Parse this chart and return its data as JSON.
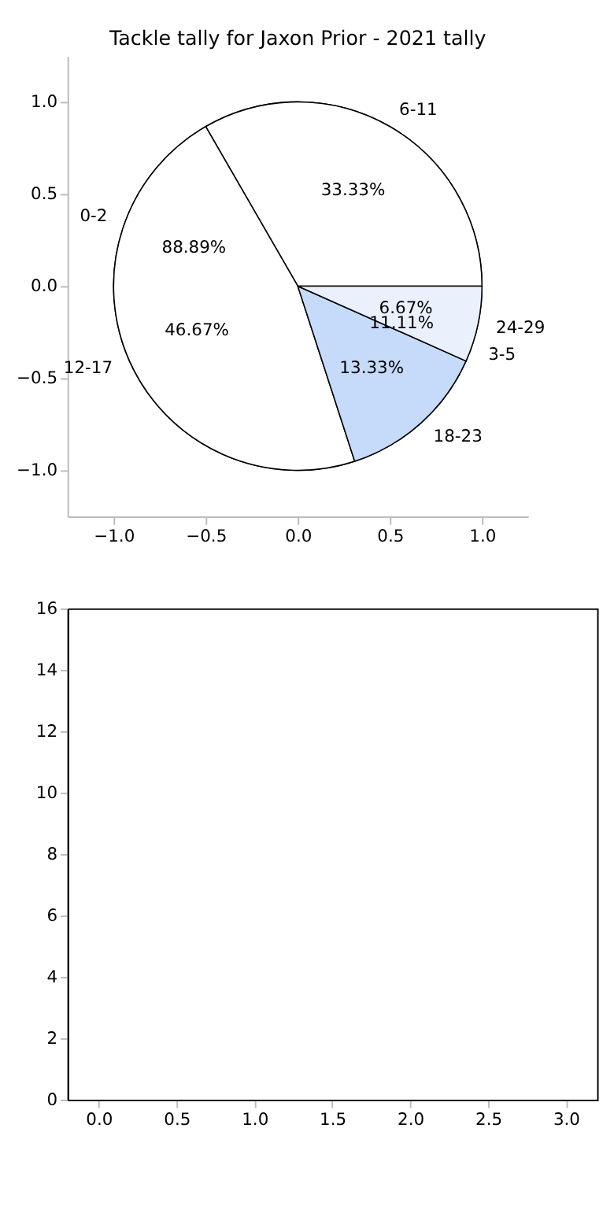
{
  "chart_data": [
    {
      "type": "scatter",
      "title": "Tackle tally for Jaxon Prior - 2021 tally",
      "xlim": [
        -1.25,
        1.25
      ],
      "ylim": [
        -1.25,
        1.25
      ],
      "xticks": [
        {
          "value": -1,
          "label": "−1.0"
        },
        {
          "value": -0.5,
          "label": "−0.5"
        },
        {
          "value": 0,
          "label": "0.0"
        },
        {
          "value": 0.5,
          "label": "0.5"
        },
        {
          "value": 1,
          "label": "1.0"
        }
      ],
      "yticks": [
        {
          "value": -1,
          "label": "−1.0"
        },
        {
          "value": -0.5,
          "label": "−0.5"
        },
        {
          "value": 0,
          "label": "0.0"
        },
        {
          "value": 0.5,
          "label": "0.5"
        },
        {
          "value": 1,
          "label": "1.0"
        }
      ]
    },
    {
      "type": "pie",
      "categories": [
        "0-2",
        "3-5"
      ],
      "values": [
        88.89,
        11.11
      ],
      "colors": [
        "#ffffff",
        "#eaf1fd"
      ],
      "value_labels": [
        "88.89%",
        "11.11%"
      ]
    },
    {
      "type": "pie",
      "categories": [
        "6-11",
        "12-17",
        "18-23",
        "24-29"
      ],
      "values": [
        33.33,
        46.67,
        13.33,
        6.67
      ],
      "colors": [
        "#ffffff",
        "#ffffff",
        "#c6dbfa",
        "#eaf1fd"
      ],
      "value_labels": [
        "33.33%",
        "46.67%",
        "13.33%",
        "6.67%"
      ]
    },
    {
      "type": "scatter",
      "xlim": [
        -0.2,
        3.2
      ],
      "ylim": [
        0,
        16
      ],
      "xticks": [
        {
          "value": 0,
          "label": "0.0"
        },
        {
          "value": 0.5,
          "label": "0.5"
        },
        {
          "value": 1,
          "label": "1.0"
        },
        {
          "value": 1.5,
          "label": "1.5"
        },
        {
          "value": 2,
          "label": "2.0"
        },
        {
          "value": 2.5,
          "label": "2.5"
        },
        {
          "value": 3,
          "label": "3.0"
        }
      ],
      "yticks": [
        0,
        2,
        4,
        6,
        8,
        10,
        12,
        14,
        16
      ]
    }
  ]
}
